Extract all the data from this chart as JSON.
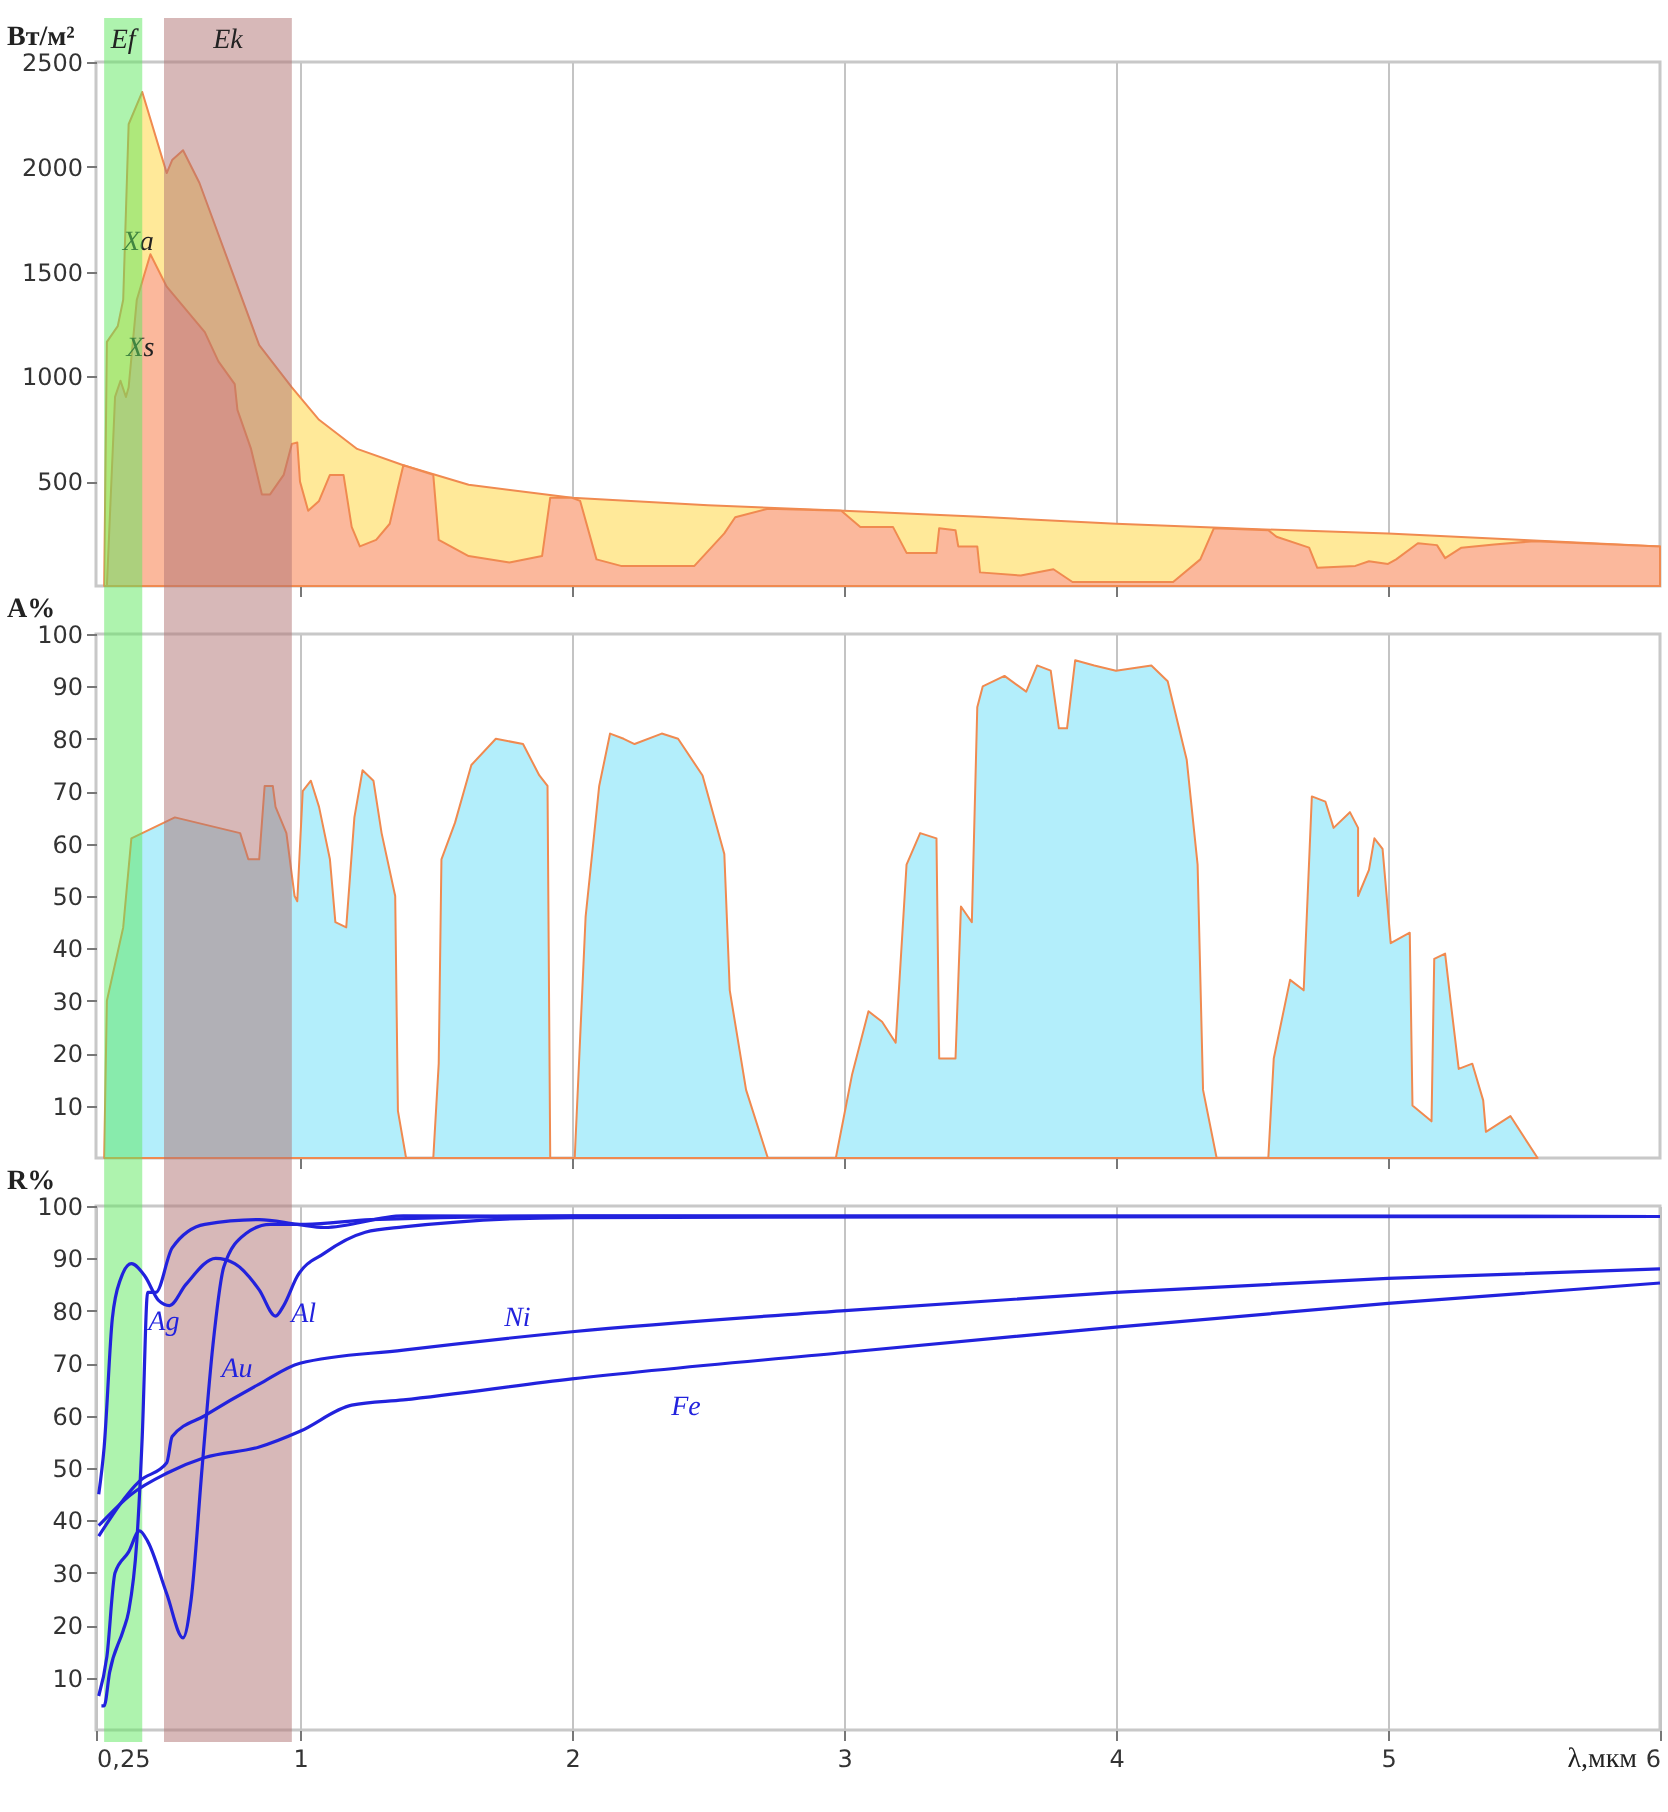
{
  "chart_data": [
    {
      "type": "area",
      "ylabel": "Вт/м²",
      "xlim": [
        0.25,
        6
      ],
      "xticks": [
        1,
        2,
        3,
        4,
        5
      ],
      "ylim": [
        0,
        2500
      ],
      "yticks": [
        500,
        1000,
        1500,
        2000,
        2500
      ],
      "grid": "x",
      "tick_labels": "y",
      "bands": [
        {
          "axis": "x",
          "from": 0.28,
          "to": 0.42,
          "label": "Ef",
          "color": "#5ee85e"
        },
        {
          "axis": "x",
          "from": 0.5,
          "to": 0.97,
          "label": "Ek",
          "color": "#b07272"
        }
      ],
      "series": [
        {
          "name": "Xa",
          "color": "#ffe999",
          "x": [
            0.28,
            0.29,
            0.33,
            0.35,
            0.37,
            0.42,
            0.51,
            0.53,
            0.57,
            0.63,
            0.85,
            0.97,
            1.07,
            1.21,
            1.38,
            1.62,
            2.0,
            2.5,
            3.0,
            3.5,
            4.0,
            4.5,
            5.0,
            5.5,
            6.0
          ],
          "values": [
            0,
            1165,
            1240,
            1366,
            2203,
            2357,
            1970,
            2032,
            2079,
            1924,
            1149,
            948,
            793,
            654,
            576,
            483,
            421,
            385,
            359,
            330,
            297,
            272,
            251,
            220,
            189
          ]
        },
        {
          "name": "Xs",
          "color": "#fbb89c",
          "x": [
            0.29,
            0.32,
            0.34,
            0.36,
            0.37,
            0.4,
            0.45,
            0.51,
            0.65,
            0.7,
            0.76,
            0.77,
            0.82,
            0.86,
            0.89,
            0.94,
            0.97,
            0.99,
            1.0,
            1.03,
            1.07,
            1.11,
            1.16,
            1.19,
            1.22,
            1.28,
            1.33,
            1.36,
            1.38,
            1.49,
            1.51,
            1.62,
            1.77,
            1.89,
            1.92,
            2.0,
            2.03,
            2.09,
            2.18,
            2.45,
            2.56,
            2.6,
            2.72,
            2.99,
            3.06,
            3.18,
            3.23,
            3.34,
            3.35,
            3.41,
            3.42,
            3.49,
            3.5,
            3.65,
            3.77,
            3.84,
            4.21,
            4.31,
            4.36,
            4.56,
            4.59,
            4.71,
            4.74,
            4.88,
            4.93,
            5.0,
            5.03,
            5.11,
            5.18,
            5.21,
            5.27,
            5.39,
            5.54,
            6.0
          ],
          "values": [
            0,
            902,
            979,
            902,
            948,
            1366,
            1583,
            1428,
            1211,
            1072,
            963,
            840,
            654,
            437,
            437,
            530,
            678,
            685,
            498,
            359,
            406,
            530,
            530,
            282,
            189,
            220,
            297,
            468,
            576,
            530,
            220,
            143,
            112,
            143,
            421,
            421,
            406,
            127,
            96,
            96,
            251,
            328,
            369,
            359,
            282,
            282,
            158,
            158,
            276,
            266,
            189,
            189,
            65,
            50,
            80,
            19,
            19,
            127,
            276,
            266,
            235,
            183,
            87,
            96,
            118,
            105,
            127,
            204,
            195,
            133,
            183,
            198,
            214,
            189
          ]
        }
      ]
    },
    {
      "type": "area",
      "ylabel": "A%",
      "xlim": [
        0.25,
        6
      ],
      "xticks": [
        1,
        2,
        3,
        4,
        5
      ],
      "ylim": [
        0,
        100
      ],
      "yticks": [
        10,
        20,
        30,
        40,
        50,
        60,
        70,
        80,
        90,
        100
      ],
      "grid": "x",
      "tick_labels": "y",
      "bands": [
        {
          "axis": "x",
          "from": 0.28,
          "to": 0.42,
          "color": "#5ee85e"
        },
        {
          "axis": "x",
          "from": 0.5,
          "to": 0.97,
          "color": "#b07272"
        }
      ],
      "series": [
        {
          "color": "#b3eefb",
          "x": [
            0.28,
            0.29,
            0.35,
            0.38,
            0.54,
            0.7,
            0.78,
            0.81,
            0.85,
            0.87,
            0.9,
            0.91,
            0.95,
            0.98,
            0.99,
            1.01,
            1.04,
            1.07,
            1.11,
            1.13,
            1.17,
            1.2,
            1.23,
            1.27,
            1.3,
            1.35,
            1.36,
            1.39,
            1.49,
            1.51,
            1.52,
            1.57,
            1.63,
            1.72,
            1.82,
            1.88,
            1.91,
            1.92,
            2.01,
            2.05,
            2.1,
            2.14,
            2.19,
            2.23,
            2.33,
            2.39,
            2.48,
            2.56,
            2.58,
            2.64,
            2.72,
            2.97,
            3.03,
            3.09,
            3.14,
            3.19,
            3.23,
            3.28,
            3.34,
            3.35,
            3.41,
            3.43,
            3.47,
            3.49,
            3.51,
            3.59,
            3.67,
            3.71,
            3.76,
            3.79,
            3.82,
            3.85,
            3.92,
            4.0,
            4.13,
            4.19,
            4.26,
            4.3,
            4.32,
            4.37,
            4.56,
            4.58,
            4.64,
            4.69,
            4.72,
            4.77,
            4.8,
            4.86,
            4.89,
            4.89,
            4.93,
            4.95,
            4.98,
            5.01,
            5.08,
            5.09,
            5.16,
            5.17,
            5.21,
            5.23,
            5.26,
            5.31,
            5.35,
            5.36,
            5.45,
            5.55
          ],
          "values": [
            0,
            30,
            44,
            61,
            65,
            63,
            62,
            57,
            57,
            71,
            71,
            67,
            62,
            50,
            49,
            70,
            72,
            67,
            57,
            45,
            44,
            65,
            74,
            72,
            62,
            50,
            9,
            0,
            0,
            18,
            57,
            64,
            75,
            80,
            79,
            73,
            71,
            0,
            0,
            46,
            71,
            81,
            80,
            79,
            81,
            80,
            73,
            58,
            32,
            13,
            0,
            0,
            16,
            28,
            26,
            22,
            56,
            62,
            61,
            19,
            19,
            48,
            45,
            86,
            90,
            92,
            89,
            94,
            93,
            82,
            82,
            95,
            94,
            93,
            94,
            91,
            76,
            56,
            13,
            0,
            0,
            19,
            34,
            32,
            69,
            68,
            63,
            66,
            63,
            50,
            55,
            61,
            59,
            41,
            43,
            10,
            7,
            38,
            39,
            30,
            17,
            18,
            11,
            5,
            8,
            0
          ]
        }
      ]
    },
    {
      "type": "line",
      "ylabel": "R%",
      "xlabel": "λ,мкм",
      "xlim": [
        0.25,
        6
      ],
      "xticks": [
        {
          "value": 0.25,
          "label": "0,25"
        },
        1,
        2,
        3,
        4,
        5,
        6
      ],
      "ylim": [
        0,
        100
      ],
      "yticks": [
        10,
        20,
        30,
        40,
        50,
        60,
        70,
        80,
        90,
        100
      ],
      "grid": "x",
      "bands": [
        {
          "axis": "x",
          "from": 0.28,
          "to": 0.42,
          "color": "#5ee85e"
        },
        {
          "axis": "x",
          "from": 0.5,
          "to": 0.97,
          "color": "#b07272"
        }
      ],
      "series": [
        {
          "name": "Ag",
          "color": "#2222dd",
          "x": [
            0.27,
            0.28,
            0.3,
            0.35,
            0.37,
            0.4,
            0.42,
            0.44,
            0.47,
            0.53,
            0.65,
            0.85,
            0.99,
            1.09,
            1.38,
            6.0
          ],
          "values": [
            4.6,
            4.6,
            11,
            19,
            22.6,
            36,
            56,
            83.5,
            83.5,
            92,
            96.5,
            97.4,
            96.5,
            95.9,
            98.1,
            98
          ]
        },
        {
          "name": "Au",
          "color": "#2222dd",
          "x": [
            0.26,
            0.29,
            0.32,
            0.37,
            0.41,
            0.44,
            0.51,
            0.57,
            0.6,
            0.64,
            0.68,
            0.72,
            0.8,
            0.89,
            1.02,
            1.26,
            2.0,
            6.0
          ],
          "values": [
            6.5,
            14,
            30,
            34,
            38,
            36,
            26,
            17.6,
            25,
            50,
            73.5,
            88.4,
            94.7,
            96.5,
            96.5,
            97.4,
            98.1,
            98
          ]
        },
        {
          "name": "Al",
          "color": "#2222dd",
          "x": [
            0.26,
            0.28,
            0.31,
            0.34,
            0.38,
            0.43,
            0.48,
            0.52,
            0.58,
            0.69,
            0.76,
            0.85,
            0.91,
            0.94,
            0.99,
            1.09,
            1.24,
            1.38,
            2.0,
            6.0
          ],
          "values": [
            45,
            54,
            78.5,
            86,
            89,
            86.6,
            82,
            81,
            85,
            90,
            89,
            84,
            79,
            81,
            86.6,
            91,
            95,
            96,
            97.8,
            98
          ]
        },
        {
          "name": "Ni",
          "color": "#2222dd",
          "x": [
            0.26,
            0.41,
            0.51,
            0.53,
            0.65,
            0.85,
            1.0,
            1.38,
            2.0,
            2.99,
            4.0,
            5.0,
            6.0
          ],
          "values": [
            37,
            47.5,
            51,
            56,
            60,
            66,
            70,
            72.5,
            76,
            80,
            83.5,
            86.2,
            88
          ]
        },
        {
          "name": "Fe",
          "color": "#2222dd",
          "x": [
            0.26,
            0.38,
            0.51,
            0.65,
            0.85,
            1.0,
            1.19,
            1.38,
            2.0,
            2.99,
            4.0,
            5.0,
            6.0
          ],
          "values": [
            39,
            45,
            49,
            52,
            54,
            57,
            62,
            63,
            67,
            72,
            76.9,
            81.4,
            85.3
          ]
        }
      ]
    }
  ]
}
